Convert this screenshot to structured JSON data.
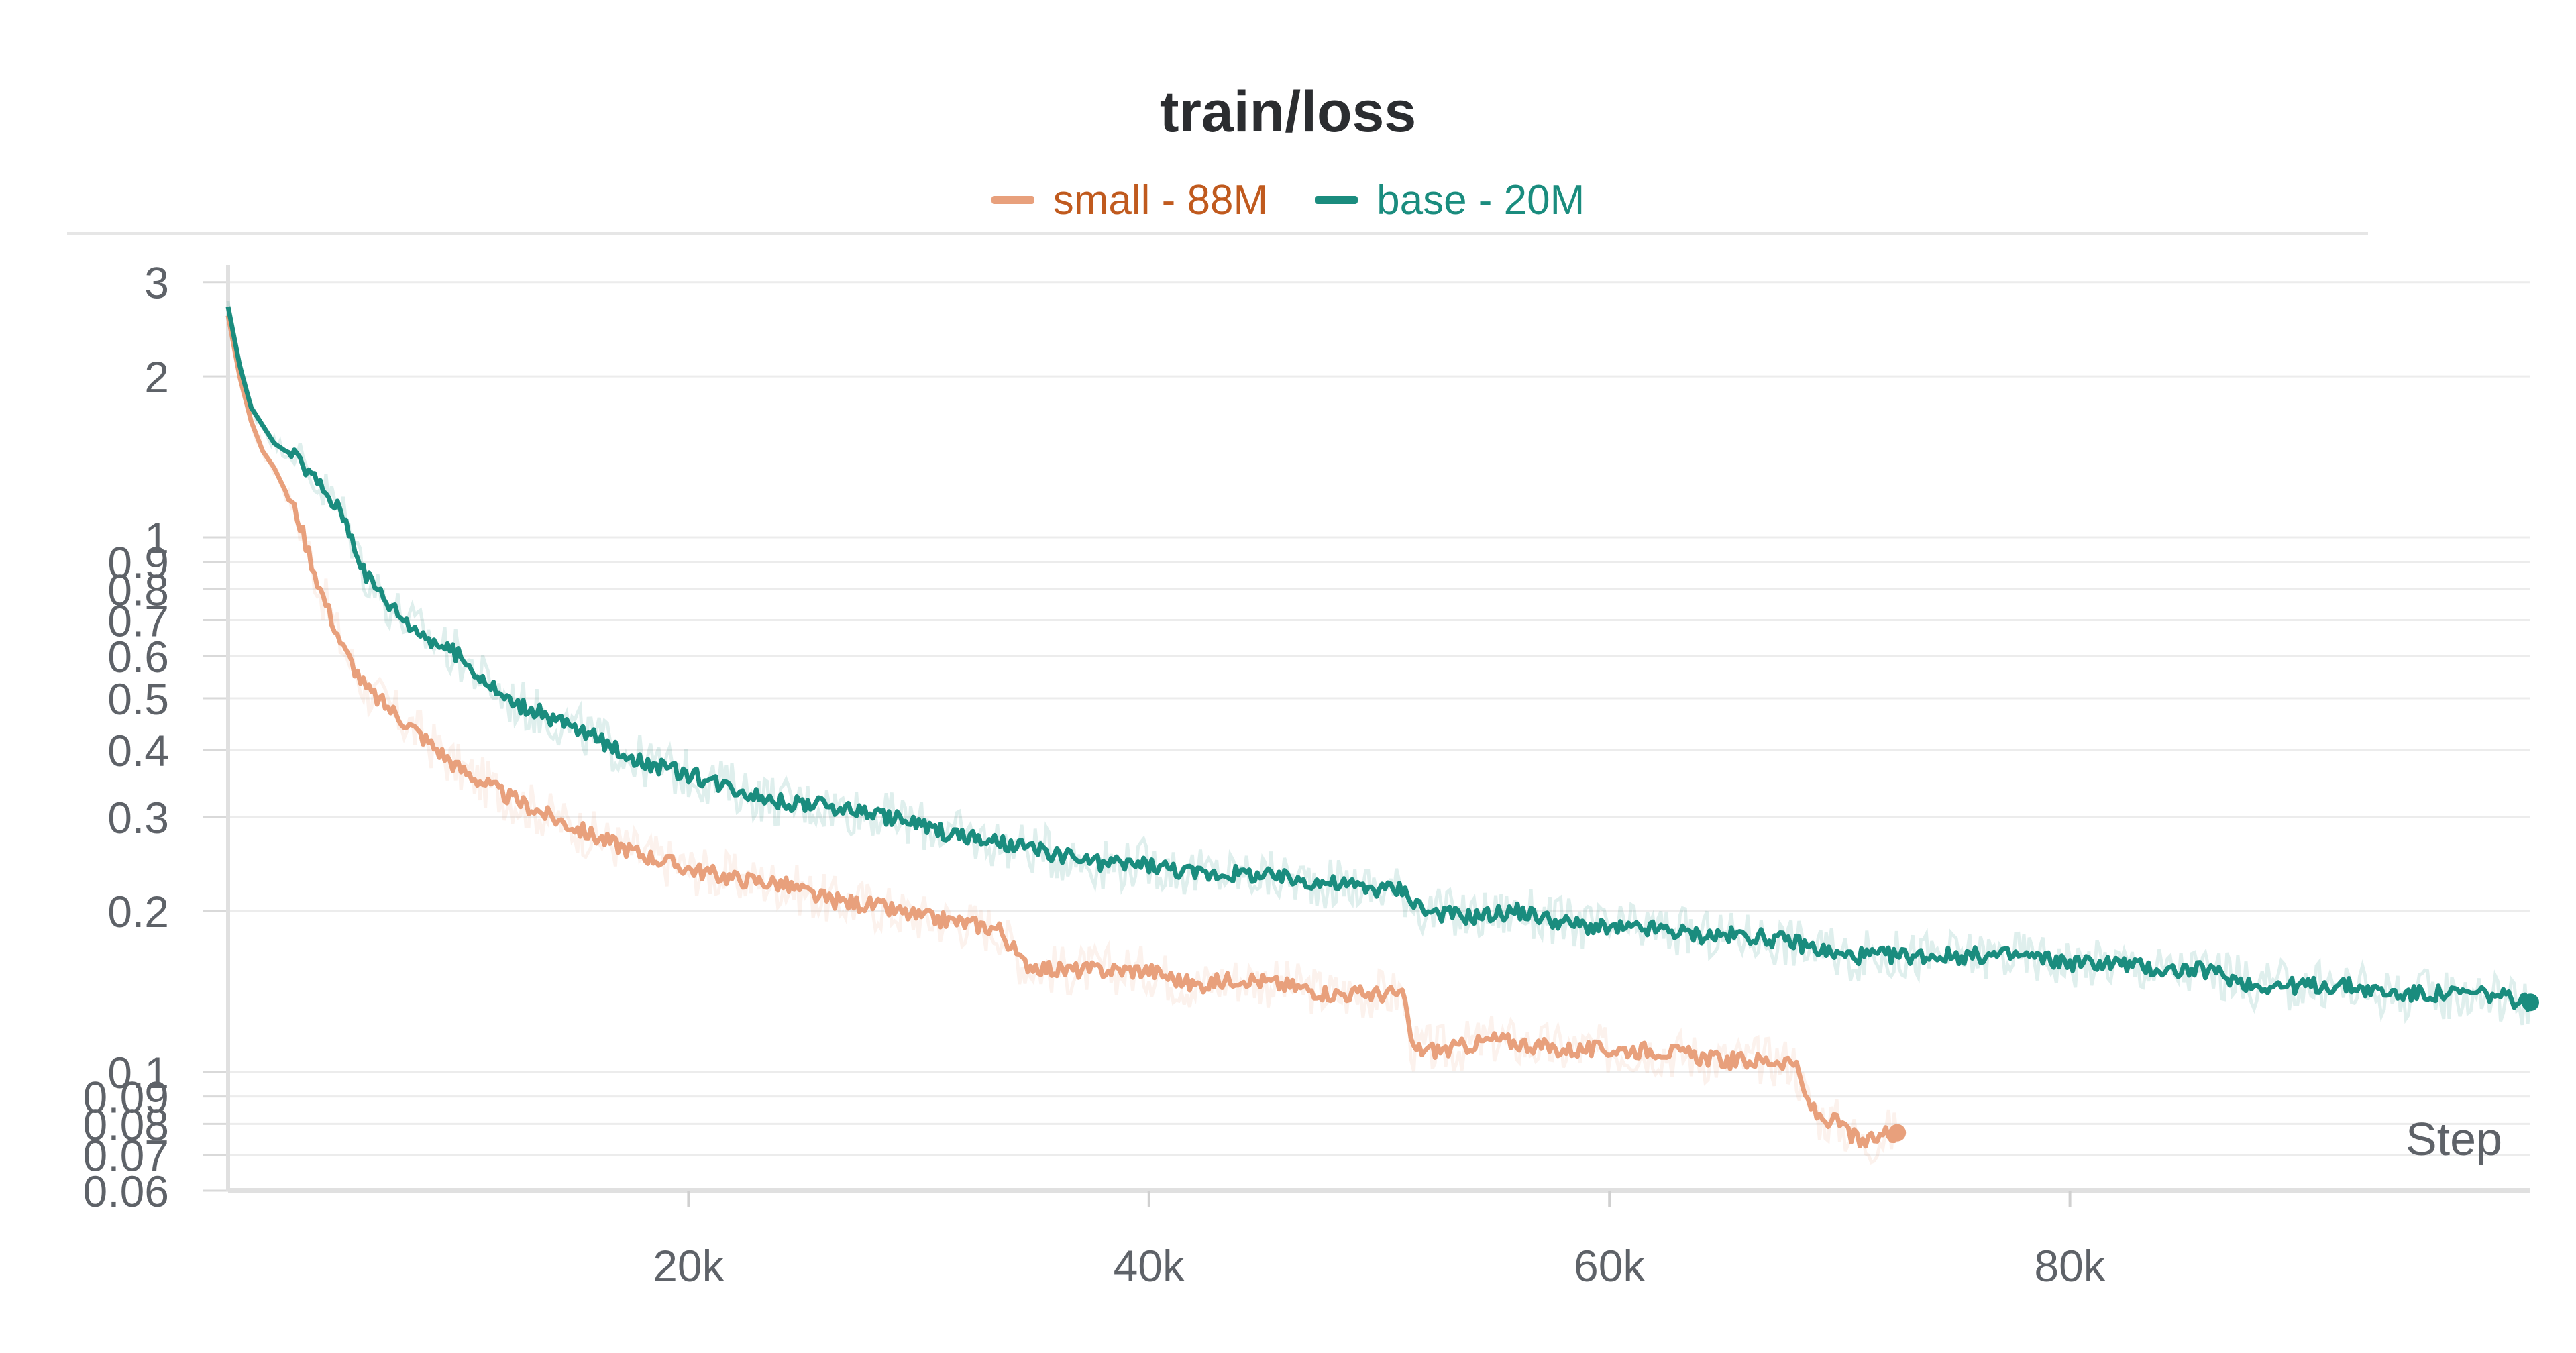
{
  "chart_data": {
    "type": "line",
    "title": "train/loss",
    "xlabel": "Step",
    "ylabel": "",
    "y_scale": "log",
    "xlim": [
      0,
      100000
    ],
    "ylim": [
      0.06,
      3
    ],
    "grid": true,
    "legend_position": "top-center",
    "x_ticks": [
      {
        "value": 20000,
        "label": "20k"
      },
      {
        "value": 40000,
        "label": "40k"
      },
      {
        "value": 60000,
        "label": "60k"
      },
      {
        "value": 80000,
        "label": "80k"
      }
    ],
    "y_ticks": [
      {
        "value": 3,
        "label": "3"
      },
      {
        "value": 2,
        "label": "2"
      },
      {
        "value": 1,
        "label": "1"
      },
      {
        "value": 0.9,
        "label": "0.9"
      },
      {
        "value": 0.8,
        "label": "0.8"
      },
      {
        "value": 0.7,
        "label": "0.7"
      },
      {
        "value": 0.6,
        "label": "0.6"
      },
      {
        "value": 0.5,
        "label": "0.5"
      },
      {
        "value": 0.4,
        "label": "0.4"
      },
      {
        "value": 0.3,
        "label": "0.3"
      },
      {
        "value": 0.2,
        "label": "0.2"
      },
      {
        "value": 0.1,
        "label": "0.1"
      },
      {
        "value": 0.09,
        "label": "0.09"
      },
      {
        "value": 0.08,
        "label": "0.08"
      },
      {
        "value": 0.07,
        "label": "0.07"
      },
      {
        "value": 0.06,
        "label": "0.06"
      }
    ],
    "series": [
      {
        "name": "small - 88M",
        "color": "#e8a07c",
        "legend_text_color": "#c05a1e",
        "x": [
          0,
          500,
          1000,
          1500,
          2000,
          3000,
          4000,
          5000,
          6000,
          8000,
          10000,
          12000,
          14000,
          16000,
          18000,
          20000,
          22000,
          24000,
          26000,
          28000,
          30000,
          32000,
          33500,
          34500,
          36000,
          38000,
          40000,
          42000,
          44000,
          46000,
          48000,
          50000,
          51000,
          51500,
          53000,
          55000,
          58000,
          62000,
          65000,
          68000,
          68500,
          69000,
          70000,
          71000,
          72000,
          72500
        ],
        "y": [
          2.6,
          2.0,
          1.65,
          1.45,
          1.35,
          1.1,
          0.8,
          0.62,
          0.52,
          0.44,
          0.37,
          0.33,
          0.3,
          0.275,
          0.255,
          0.24,
          0.23,
          0.225,
          0.21,
          0.205,
          0.195,
          0.19,
          0.185,
          0.16,
          0.155,
          0.155,
          0.155,
          0.145,
          0.15,
          0.145,
          0.14,
          0.14,
          0.14,
          0.11,
          0.11,
          0.115,
          0.11,
          0.11,
          0.105,
          0.105,
          0.09,
          0.083,
          0.08,
          0.073,
          0.077,
          0.077
        ]
      },
      {
        "name": "base - 20M",
        "color": "#1a8c7e",
        "legend_text_color": "#1a8c7e",
        "x": [
          0,
          500,
          1000,
          2000,
          3000,
          4000,
          5000,
          6000,
          7000,
          8000,
          10000,
          12000,
          14000,
          16000,
          18000,
          20000,
          22000,
          24000,
          26000,
          28000,
          30000,
          32000,
          34000,
          36000,
          38000,
          40000,
          42000,
          44000,
          46000,
          48000,
          50000,
          51000,
          52000,
          54000,
          56000,
          58000,
          60000,
          62000,
          64000,
          66000,
          68000,
          70000,
          72000,
          74000,
          76000,
          78000,
          80000,
          82000,
          84000,
          86000,
          88000,
          90000,
          92000,
          94000,
          96000,
          98000,
          100000
        ],
        "y": [
          2.7,
          2.1,
          1.75,
          1.5,
          1.4,
          1.25,
          1.1,
          0.85,
          0.75,
          0.68,
          0.6,
          0.5,
          0.46,
          0.42,
          0.38,
          0.36,
          0.34,
          0.32,
          0.315,
          0.305,
          0.29,
          0.275,
          0.265,
          0.255,
          0.245,
          0.245,
          0.235,
          0.235,
          0.23,
          0.225,
          0.22,
          0.22,
          0.2,
          0.195,
          0.2,
          0.19,
          0.185,
          0.185,
          0.18,
          0.18,
          0.175,
          0.165,
          0.165,
          0.165,
          0.165,
          0.165,
          0.16,
          0.16,
          0.155,
          0.155,
          0.145,
          0.145,
          0.145,
          0.14,
          0.14,
          0.14,
          0.135
        ]
      }
    ]
  }
}
